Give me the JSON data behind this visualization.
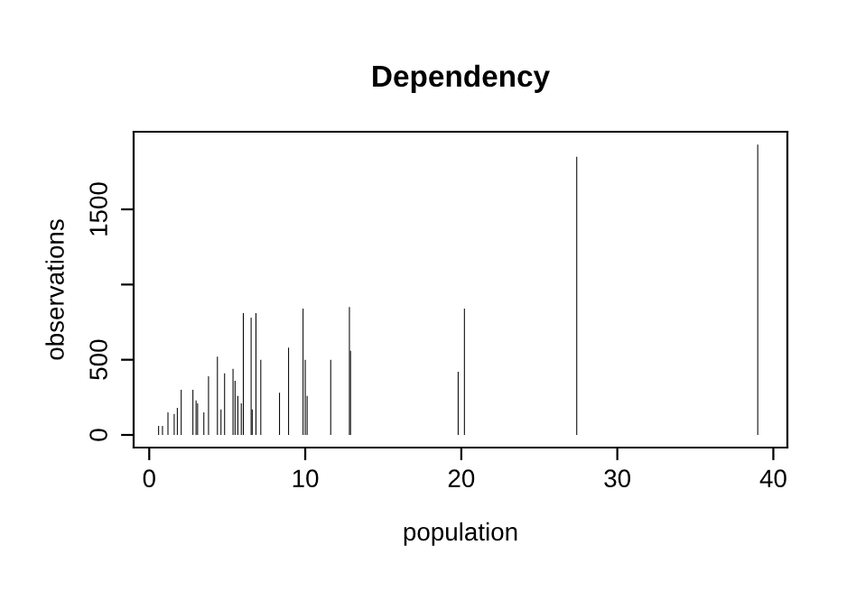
{
  "chart_data": {
    "type": "bar",
    "title": "Dependency",
    "xlabel": "population",
    "ylabel": "observations",
    "x": [
      0.6,
      0.85,
      1.2,
      1.6,
      1.8,
      2.05,
      2.8,
      3.0,
      3.1,
      3.5,
      3.8,
      4.37,
      4.6,
      4.83,
      5.37,
      5.5,
      5.68,
      5.9,
      6.03,
      6.53,
      6.6,
      6.84,
      7.15,
      8.35,
      8.93,
      9.86,
      10.0,
      10.12,
      11.63,
      12.83,
      12.9,
      19.8,
      20.2,
      27.4,
      39.0
    ],
    "values": [
      60,
      60,
      150,
      140,
      180,
      300,
      300,
      230,
      210,
      150,
      390,
      520,
      170,
      410,
      440,
      360,
      260,
      210,
      810,
      780,
      170,
      810,
      500,
      280,
      580,
      840,
      500,
      260,
      500,
      850,
      560,
      420,
      840,
      1850,
      1930
    ],
    "color": "#000000",
    "xlim": [
      -1.0,
      40.9
    ],
    "ylim": [
      -84,
      2016
    ],
    "xticks": [
      0,
      10,
      20,
      30,
      40
    ],
    "yticks": [
      0,
      500,
      {
        "value": 1000,
        "label": null
      },
      1500
    ],
    "grid": false,
    "legend": false
  }
}
